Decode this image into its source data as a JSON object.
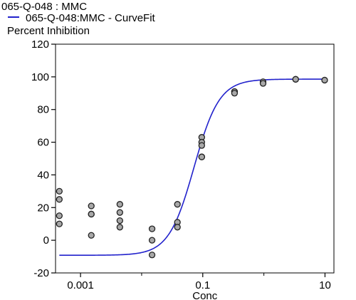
{
  "legend": {
    "series_title": "065-Q-048  : MMC",
    "fit_label": "065-Q-048:MMC - CurveFit",
    "y_title": "Percent Inhibition"
  },
  "colors": {
    "fit_line": "#2222cc",
    "marker_fill": "#a8a8a8",
    "marker_stroke": "#222222",
    "axis": "#000000"
  },
  "chart_data": {
    "type": "scatter",
    "title": "065-Q-048  : MMC",
    "xlabel": "Conc",
    "ylabel": "Percent Inhibition",
    "xscale": "log",
    "xlim": [
      0.00039,
      14
    ],
    "ylim": [
      -20,
      120
    ],
    "yticks": [
      -20,
      0,
      20,
      40,
      60,
      80,
      100,
      120
    ],
    "xticks": [
      0.001,
      0.1,
      10
    ],
    "xtick_labels": [
      "0.001",
      "0.1",
      "10"
    ],
    "grid": false,
    "legend_position": "top-left",
    "series": [
      {
        "name": "065-Q-048  : MMC",
        "marker": "circle",
        "x": [
          0.00045,
          0.00045,
          0.00045,
          0.00045,
          0.0015,
          0.0015,
          0.0015,
          0.0015,
          0.0044,
          0.0044,
          0.0044,
          0.0044,
          0.0148,
          0.0148,
          0.0148,
          0.0385,
          0.0385,
          0.0385,
          0.0962,
          0.0962,
          0.0962,
          0.0962,
          0.0962,
          0.331,
          0.331,
          0.331,
          0.97,
          0.97,
          3.31,
          3.31,
          9.87
        ],
        "y": [
          30,
          25,
          15,
          10,
          21,
          16,
          16,
          3,
          22,
          17,
          12,
          8,
          7,
          0,
          -9,
          22,
          11,
          8,
          63,
          60,
          58,
          51,
          51,
          91,
          91,
          90,
          97,
          96,
          98.5,
          98.5,
          98
        ]
      },
      {
        "name": "065-Q-048:MMC - CurveFit",
        "type": "line",
        "model": "4-parameter logistic",
        "bottom": -9.2,
        "top": 98.6,
        "ec50": 0.072,
        "hill": 2.1
      }
    ]
  }
}
